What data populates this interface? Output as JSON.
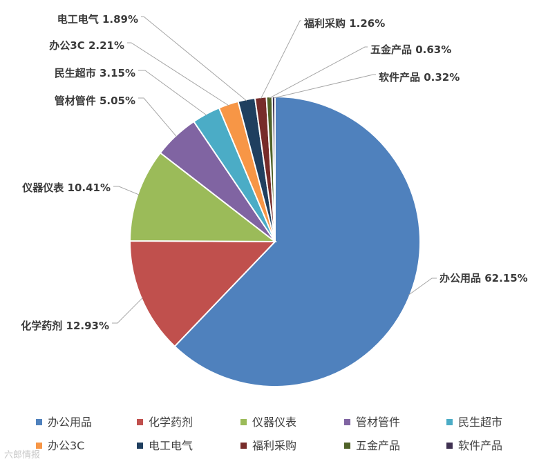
{
  "chart_data": {
    "type": "pie",
    "categories": [
      "办公用品",
      "化学药剂",
      "仪器仪表",
      "管材管件",
      "民生超市",
      "办公3C",
      "电工电气",
      "福利采购",
      "五金产品",
      "软件产品"
    ],
    "values": [
      62.15,
      12.93,
      10.41,
      5.05,
      3.15,
      2.21,
      1.89,
      1.26,
      0.63,
      0.32
    ],
    "value_labels": [
      "62.15%",
      "12.93%",
      "10.41%",
      "5.05%",
      "3.15%",
      "2.21%",
      "1.89%",
      "1.26%",
      "0.63%",
      "0.32%"
    ],
    "colors": [
      "#4f81bd",
      "#c0504d",
      "#9bbb59",
      "#8064a2",
      "#4bacc6",
      "#f79646",
      "#1f3f5f",
      "#772c2a",
      "#4f6228",
      "#3f3151"
    ],
    "legend_position": "bottom",
    "title": ""
  },
  "watermark": "六郎情报"
}
